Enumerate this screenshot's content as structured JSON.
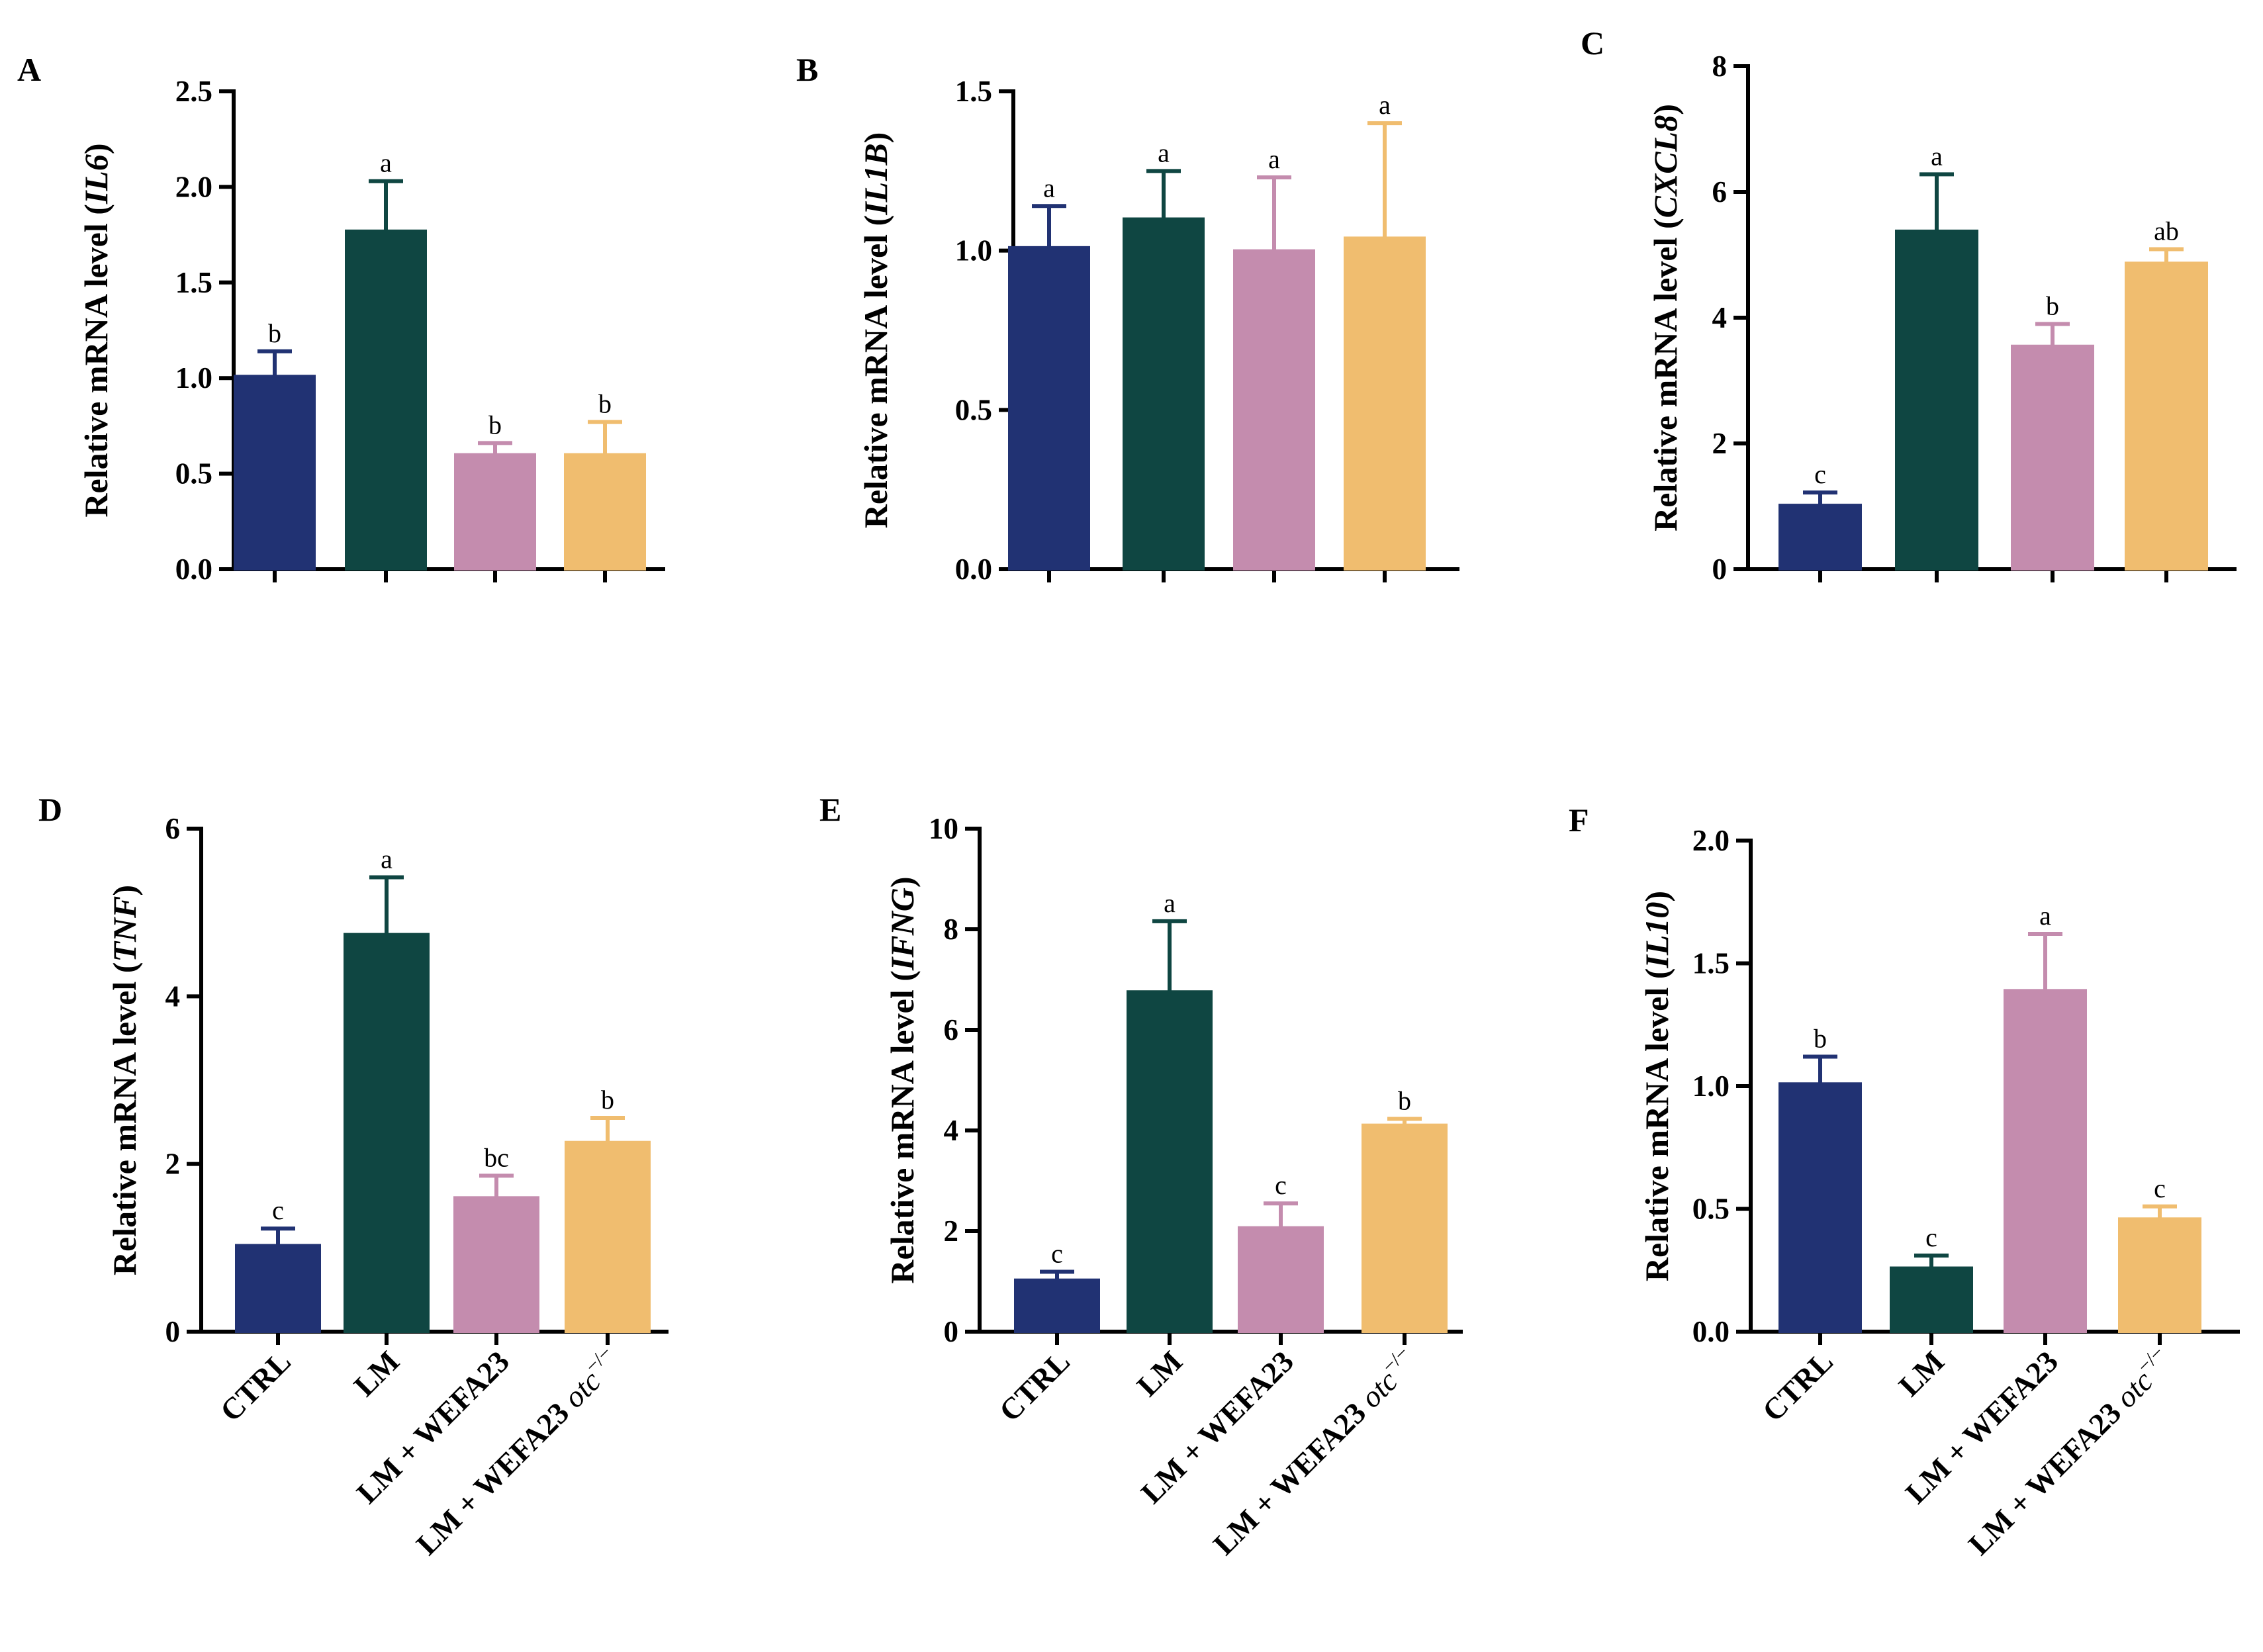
{
  "categories": [
    "CTRL",
    "LM",
    "LM + WEFA23",
    "LM + WEFA23 otc"
  ],
  "category_superscript": "−/−",
  "category_italic_part": "otc",
  "ylabel_prefix": "Relative mRNA level (",
  "ylabel_suffix": ")",
  "colors": [
    "#213273",
    "#0f4642",
    "#c48cae",
    "#f0bd6f"
  ],
  "chart_data": [
    {
      "type": "bar",
      "panel": "A",
      "gene": "IL6",
      "ylim": [
        0,
        2.5
      ],
      "yticks": [
        "0.0",
        "0.5",
        "1.0",
        "1.5",
        "2.0",
        "2.5"
      ],
      "values": [
        1.01,
        1.77,
        0.6,
        0.6
      ],
      "errors": [
        0.13,
        0.26,
        0.06,
        0.17
      ],
      "significance": [
        "b",
        "a",
        "b",
        "b"
      ]
    },
    {
      "type": "bar",
      "panel": "B",
      "gene": "IL1B",
      "ylim": [
        0,
        1.5
      ],
      "yticks": [
        "0.0",
        "0.5",
        "1.0",
        "1.5"
      ],
      "values": [
        1.01,
        1.1,
        1.0,
        1.04
      ],
      "errors": [
        0.13,
        0.15,
        0.23,
        0.36
      ],
      "significance": [
        "a",
        "a",
        "a",
        "a"
      ]
    },
    {
      "type": "bar",
      "panel": "C",
      "gene": "CXCL8",
      "ylim": [
        0,
        8
      ],
      "yticks": [
        "0",
        "2",
        "4",
        "6",
        "8"
      ],
      "values": [
        1.02,
        5.38,
        3.55,
        4.87
      ],
      "errors": [
        0.2,
        0.9,
        0.35,
        0.22
      ],
      "significance": [
        "c",
        "a",
        "b",
        "ab"
      ]
    },
    {
      "type": "bar",
      "panel": "D",
      "gene": "TNF",
      "ylim": [
        0,
        6
      ],
      "yticks": [
        "0",
        "2",
        "4",
        "6"
      ],
      "values": [
        1.03,
        4.74,
        1.6,
        2.26
      ],
      "errors": [
        0.2,
        0.68,
        0.26,
        0.29
      ],
      "significance": [
        "c",
        "a",
        "bc",
        "b"
      ]
    },
    {
      "type": "bar",
      "panel": "E",
      "gene": "IFNG",
      "ylim": [
        0,
        10
      ],
      "yticks": [
        "0",
        "2",
        "4",
        "6",
        "8",
        "10"
      ],
      "values": [
        1.03,
        6.76,
        2.07,
        4.11
      ],
      "errors": [
        0.16,
        1.4,
        0.48,
        0.12
      ],
      "significance": [
        "c",
        "a",
        "c",
        "b"
      ]
    },
    {
      "type": "bar",
      "panel": "F",
      "gene": "IL10",
      "ylim": [
        0,
        2.0
      ],
      "yticks": [
        "0.0",
        "0.5",
        "1.0",
        "1.5",
        "2.0"
      ],
      "values": [
        1.01,
        0.26,
        1.39,
        0.46
      ],
      "errors": [
        0.11,
        0.05,
        0.23,
        0.05
      ],
      "significance": [
        "b",
        "c",
        "a",
        "c"
      ]
    }
  ]
}
